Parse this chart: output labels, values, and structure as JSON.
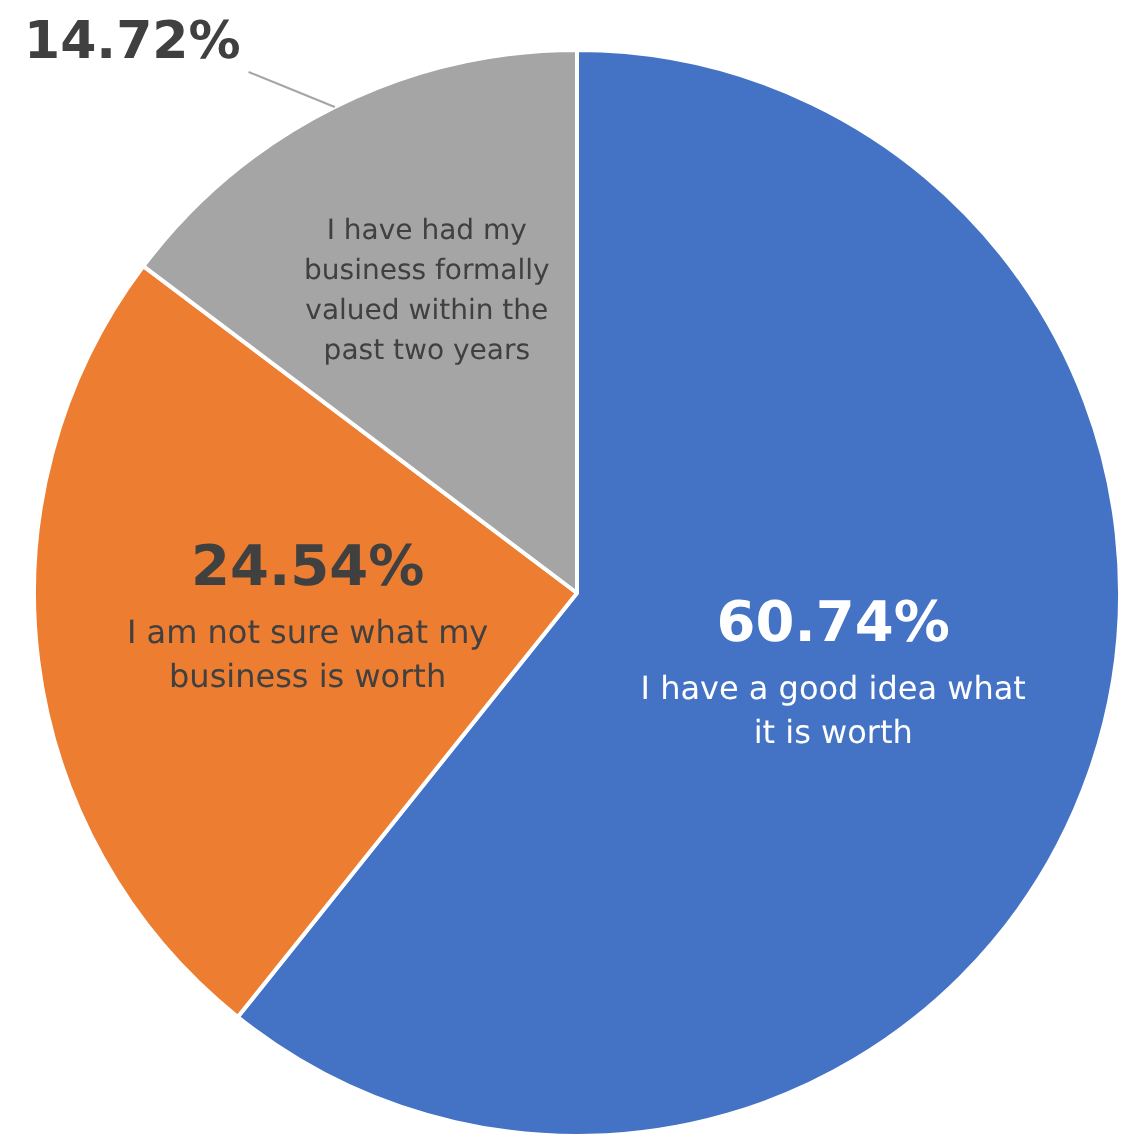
{
  "chart_data": {
    "type": "pie",
    "categories": [
      "I have a good idea what it is worth",
      "I am not sure what my business is worth",
      "I have had my business formally valued within the past two years"
    ],
    "values": [
      60.74,
      24.54,
      14.72
    ],
    "colors": [
      "#4472c4",
      "#ed7d31",
      "#a5a5a5"
    ],
    "value_labels": [
      "60.74%",
      "24.54%",
      "14.72%"
    ],
    "legend": false
  }
}
